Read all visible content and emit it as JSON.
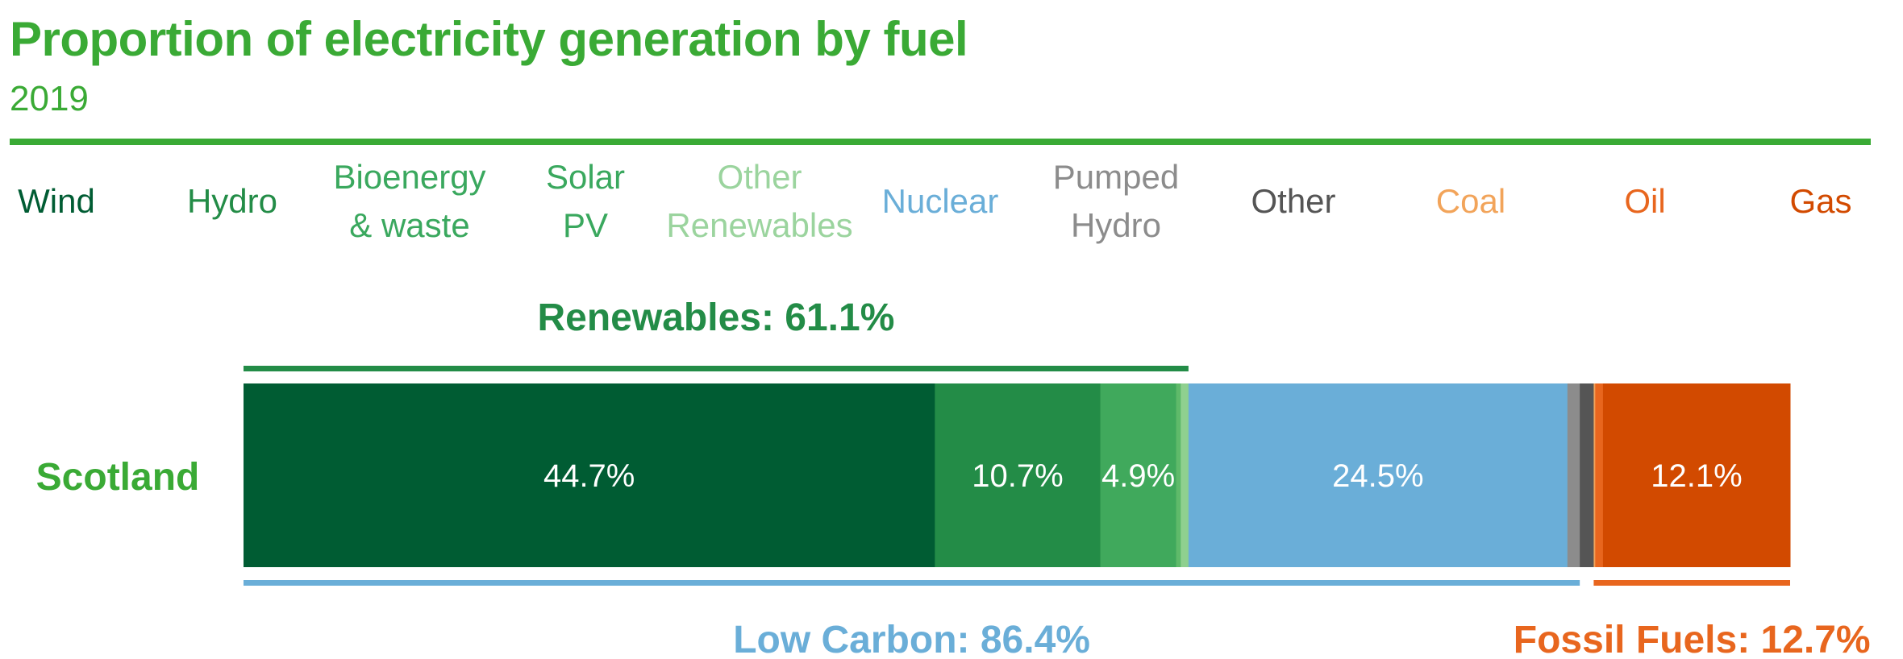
{
  "title": "Proportion of electricity generation by fuel",
  "subtitle": "2019",
  "legend": [
    {
      "lines": [
        "Wind"
      ],
      "color": "#005c33"
    },
    {
      "lines": [
        "Hydro"
      ],
      "color": "#238c47"
    },
    {
      "lines": [
        "Bioenergy",
        "& waste"
      ],
      "color": "#3aa85e"
    },
    {
      "lines": [
        "Solar",
        "PV"
      ],
      "color": "#3aa85e"
    },
    {
      "lines": [
        "Other",
        "Renewables"
      ],
      "color": "#9bd49e"
    },
    {
      "lines": [
        "Nuclear"
      ],
      "color": "#6aaed8"
    },
    {
      "lines": [
        "Pumped",
        "Hydro"
      ],
      "color": "#8c8c8c"
    },
    {
      "lines": [
        "Other"
      ],
      "color": "#555555"
    },
    {
      "lines": [
        "Coal"
      ],
      "color": "#f2a45a"
    },
    {
      "lines": [
        "Oil"
      ],
      "color": "#e8661e"
    },
    {
      "lines": [
        "Gas"
      ],
      "color": "#d24a00"
    }
  ],
  "chart_data": {
    "type": "bar",
    "orientation": "horizontal-stacked",
    "categories": [
      "Scotland"
    ],
    "xlim": [
      0,
      100
    ],
    "grid": false,
    "legend_position": "top",
    "series": [
      {
        "name": "Wind",
        "values": [
          44.7
        ],
        "label": "44.7%",
        "color": "#005c33"
      },
      {
        "name": "Hydro",
        "values": [
          10.7
        ],
        "label": "10.7%",
        "color": "#238c47"
      },
      {
        "name": "Bioenergy & waste",
        "values": [
          4.9
        ],
        "label": "4.9%",
        "color": "#40a95c"
      },
      {
        "name": "Solar PV",
        "values": [
          0.3
        ],
        "label": "",
        "color": "#5fba6a"
      },
      {
        "name": "Other Renewables",
        "values": [
          0.5
        ],
        "label": "",
        "color": "#8fd08f"
      },
      {
        "name": "Nuclear",
        "values": [
          24.5
        ],
        "label": "24.5%",
        "color": "#6aaed8"
      },
      {
        "name": "Pumped Hydro",
        "values": [
          0.8
        ],
        "label": "",
        "color": "#8c8c8c"
      },
      {
        "name": "Other",
        "values": [
          0.9
        ],
        "label": "",
        "color": "#555555"
      },
      {
        "name": "Coal",
        "values": [
          0.1
        ],
        "label": "",
        "color": "#f2a45a"
      },
      {
        "name": "Oil",
        "values": [
          0.5
        ],
        "label": "",
        "color": "#e8661e"
      },
      {
        "name": "Gas",
        "values": [
          12.1
        ],
        "label": "12.1%",
        "color": "#d24a00"
      }
    ],
    "groups": [
      {
        "label": "Renewables: 61.1%",
        "from_series": 0,
        "to_series": 4,
        "position": "above",
        "color": "#238c47"
      },
      {
        "label": "Low Carbon: 86.4%",
        "from_series": 0,
        "to_series": 6,
        "position": "below",
        "color": "#6aaed8"
      },
      {
        "label": "Fossil Fuels: 12.7%",
        "from_series": 8,
        "to_series": 10,
        "position": "below",
        "color": "#e8661e"
      }
    ],
    "category_label_color": "#3aaa35"
  }
}
